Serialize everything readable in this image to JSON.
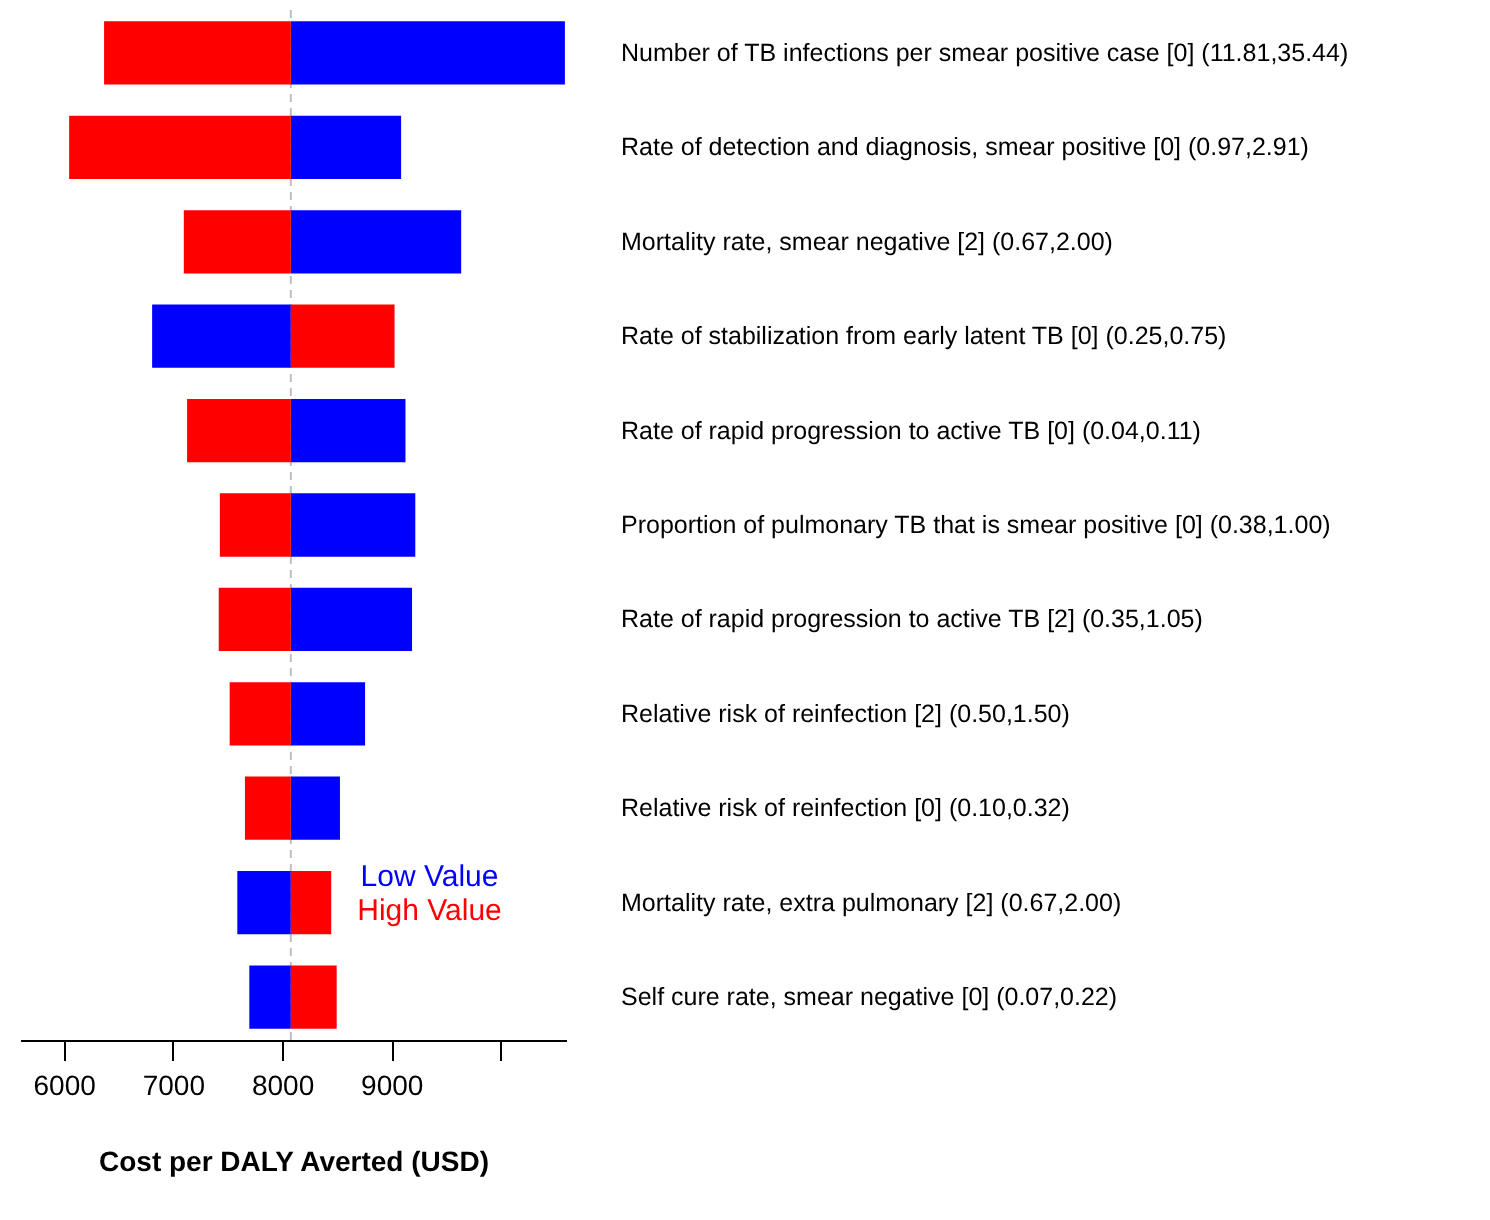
{
  "chart_data": {
    "type": "bar",
    "orientation": "horizontal",
    "xlabel": "Cost per DALY Averted (USD)",
    "categories": [
      "Number of TB infections per smear positive case [0] (11.81,35.44)",
      "Rate of detection and diagnosis, smear positive [0] (0.97,2.91)",
      "Mortality rate, smear negative [2] (0.67,2.00)",
      "Rate of stabilization from early latent TB [0] (0.25,0.75)",
      "Rate of rapid progression to active TB [0] (0.04,0.11)",
      "Proportion of pulmonary TB that is smear positive [0] (0.38,1.00)",
      "Rate of rapid progression to active TB [2] (0.35,1.05)",
      "Relative risk of reinfection [2] (0.50,1.50)",
      "Relative risk of reinfection [0] (0.10,0.32)",
      "Mortality rate, extra pulmonary [2] (0.67,2.00)",
      "Self cure rate, smear negative [0] (0.07,0.22)"
    ],
    "series": [
      {
        "name": "Low Value",
        "color": "#0000ff",
        "base": [
          8080,
          8080,
          8080,
          8080,
          8080,
          8080,
          8080,
          8080,
          8080,
          8080,
          8080
        ],
        "values": [
          2510,
          1010,
          1560,
          -1270,
          1050,
          1140,
          1110,
          680,
          450,
          -490,
          -380
        ]
      },
      {
        "name": "High Value",
        "color": "#ff0000",
        "base": [
          8080,
          8080,
          8080,
          8080,
          8080,
          8080,
          8080,
          8080,
          8080,
          8080,
          8080
        ],
        "values": [
          -1710,
          -2030,
          -980,
          950,
          -950,
          -650,
          -660,
          -560,
          -420,
          370,
          420
        ]
      }
    ],
    "xlim": [
      5600,
      10600
    ],
    "xticks": [
      6000,
      7000,
      8000,
      9000,
      {
        "value": 10000,
        "label": null
      }
    ],
    "ref_lines": [
      {
        "axis": "x",
        "value": 8080,
        "color": "#bebebe",
        "line_style": "dashed"
      }
    ],
    "legend": "bottom right",
    "grid": false
  }
}
